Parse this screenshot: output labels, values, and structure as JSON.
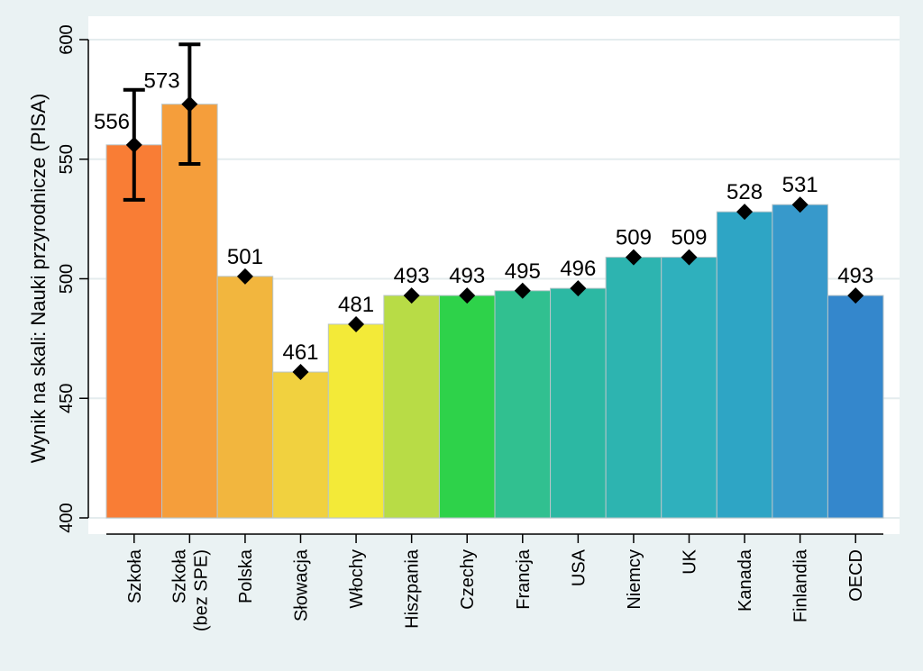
{
  "chart_data": {
    "type": "bar",
    "title": "",
    "xlabel": "",
    "ylabel": "Wynik na skali: Nauki przyrodnicze (PISA)",
    "ylim": [
      400,
      600
    ],
    "yticks": [
      400,
      450,
      500,
      550,
      600
    ],
    "grid": true,
    "categories": [
      [
        "Szkoła"
      ],
      [
        "Szkoła",
        "(bez SPE)"
      ],
      [
        "Polska"
      ],
      [
        "Słowacja"
      ],
      [
        "Włochy"
      ],
      [
        "Hiszpania"
      ],
      [
        "Czechy"
      ],
      [
        "Francja"
      ],
      [
        "USA"
      ],
      [
        "Niemcy"
      ],
      [
        "UK"
      ],
      [
        "Kanada"
      ],
      [
        "Finlandia"
      ],
      [
        "OECD"
      ]
    ],
    "values": [
      556,
      573,
      501,
      461,
      481,
      493,
      493,
      495,
      496,
      509,
      509,
      528,
      531,
      493
    ],
    "value_labels": [
      "556",
      "573",
      "501",
      "461",
      "481",
      "493",
      "493",
      "495",
      "496",
      "509",
      "509",
      "528",
      "531",
      "493"
    ],
    "error_bars": [
      {
        "index": 0,
        "low": 533,
        "high": 579
      },
      {
        "index": 1,
        "low": 548,
        "high": 598
      }
    ],
    "colors": [
      "#f97d35",
      "#f59e3b",
      "#f2b63e",
      "#f1d13f",
      "#f3ea38",
      "#b8dc46",
      "#2ed24a",
      "#31c090",
      "#2cb8a3",
      "#2db4b0",
      "#2fb0bd",
      "#2ea5c5",
      "#3799cb",
      "#3487cc"
    ],
    "bar_outline_color": "#b8c5c8",
    "marker": "diamond",
    "background_color": "#eaf2f3",
    "plot_background_color": "#ffffff",
    "grid_color": "#e4ecee"
  }
}
